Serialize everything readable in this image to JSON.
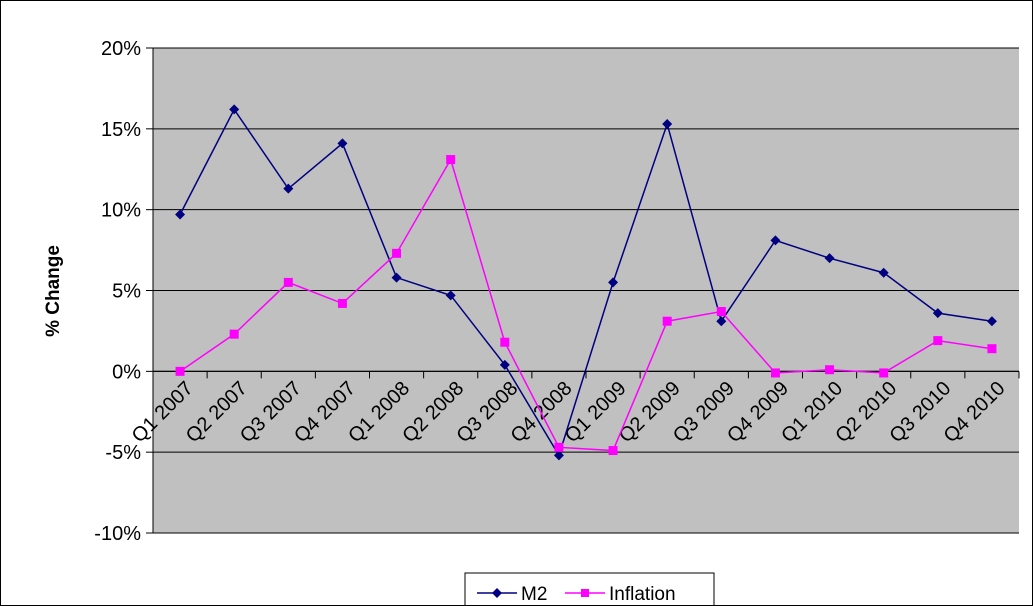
{
  "chart_data": {
    "type": "line",
    "title": "",
    "xlabel": "",
    "ylabel": "% Change",
    "ylim": [
      -10,
      20
    ],
    "y_ticks": [
      20,
      15,
      10,
      5,
      0,
      -5,
      -10
    ],
    "y_tick_labels": [
      "20%",
      "15%",
      "10%",
      "5%",
      "0%",
      "-5%",
      "-10%"
    ],
    "grid": true,
    "legend_position": "bottom-center",
    "plot_background": "#C0C0C0",
    "categories": [
      "Q1 2007",
      "Q2 2007",
      "Q3 2007",
      "Q4 2007",
      "Q1 2008",
      "Q2 2008",
      "Q3 2008",
      "Q4 2008",
      "Q1 2009",
      "Q2 2009",
      "Q3 2009",
      "Q4 2009",
      "Q1 2010",
      "Q2 2010",
      "Q3 2010",
      "Q4 2010"
    ],
    "series": [
      {
        "name": "M2",
        "color": "#000080",
        "marker": "diamond",
        "values": [
          9.7,
          16.2,
          11.3,
          14.1,
          5.8,
          4.7,
          0.4,
          -5.2,
          5.5,
          15.3,
          3.1,
          8.1,
          7.0,
          6.1,
          3.6,
          3.1
        ]
      },
      {
        "name": "Inflation",
        "color": "#FF00FF",
        "marker": "square",
        "values": [
          0.0,
          2.3,
          5.5,
          4.2,
          7.3,
          13.1,
          1.8,
          -4.7,
          -4.9,
          3.1,
          3.7,
          -0.1,
          0.1,
          -0.1,
          1.9,
          1.4
        ]
      }
    ]
  }
}
